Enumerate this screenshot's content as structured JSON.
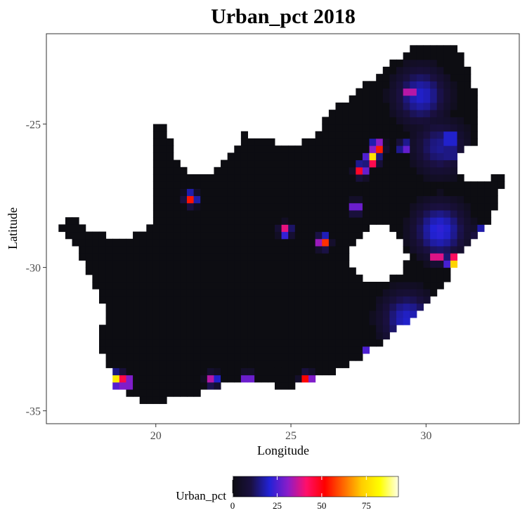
{
  "chart_data": {
    "type": "heatmap",
    "title": "Urban_pct 2018",
    "xlabel": "Longitude",
    "ylabel": "Latitude",
    "xlim": [
      15.95,
      33.45
    ],
    "ylim": [
      -35.45,
      -21.85
    ],
    "x_ticks": [
      "20",
      "25",
      "30"
    ],
    "y_ticks": [
      "-25",
      "-30",
      "-35"
    ],
    "grid": false,
    "background_color": "#ffffff",
    "panel_border_color": "#333333",
    "no_data_color": "#ffffff",
    "legend": {
      "title": "Urban_pct",
      "position": "bottom",
      "range": [
        0,
        93
      ],
      "ticks": [
        "0",
        "25",
        "50",
        "75"
      ],
      "colors": [
        "#0d0d12",
        "#1a1040",
        "#2222d6",
        "#8a1cc9",
        "#ff0f6a",
        "#ff0000",
        "#ff6600",
        "#ffcc00",
        "#ffff00",
        "#ffffe8"
      ]
    },
    "base_cell_color": "#0d0d12",
    "hotspots": [
      {
        "lon": 28.0,
        "lat": -26.2,
        "value": 88
      },
      {
        "lon": 28.2,
        "lat": -25.8,
        "value": 70
      },
      {
        "lon": 27.6,
        "lat": -26.6,
        "value": 55
      },
      {
        "lon": 18.6,
        "lat": -33.9,
        "value": 90
      },
      {
        "lon": 18.9,
        "lat": -34.0,
        "value": 60
      },
      {
        "lon": 31.0,
        "lat": -29.8,
        "value": 85
      },
      {
        "lon": 30.4,
        "lat": -29.6,
        "value": 55
      },
      {
        "lon": 25.6,
        "lat": -33.9,
        "value": 60
      },
      {
        "lon": 27.9,
        "lat": -33.0,
        "value": 50
      },
      {
        "lon": 26.2,
        "lat": -29.1,
        "value": 65
      },
      {
        "lon": 24.8,
        "lat": -28.7,
        "value": 45
      },
      {
        "lon": 21.3,
        "lat": -27.6,
        "value": 55
      },
      {
        "lon": 29.4,
        "lat": -23.9,
        "value": 50
      },
      {
        "lon": 30.9,
        "lat": -25.5,
        "value": 40
      },
      {
        "lon": 29.2,
        "lat": -25.8,
        "value": 35
      },
      {
        "lon": 27.4,
        "lat": -27.9,
        "value": 40
      },
      {
        "lon": 23.4,
        "lat": -33.9,
        "value": 40
      },
      {
        "lon": 22.1,
        "lat": -33.9,
        "value": 40
      },
      {
        "lon": 32.0,
        "lat": -28.8,
        "value": 35
      },
      {
        "lon": 30.9,
        "lat": -26.0,
        "value": 30
      }
    ],
    "regions": [
      {
        "lon": 29.3,
        "lat": -31.8,
        "value": 20
      },
      {
        "lon": 30.5,
        "lat": -28.7,
        "value": 22
      },
      {
        "lon": 29.8,
        "lat": -24.0,
        "value": 20
      },
      {
        "lon": 30.5,
        "lat": -25.8,
        "value": 16
      }
    ]
  }
}
